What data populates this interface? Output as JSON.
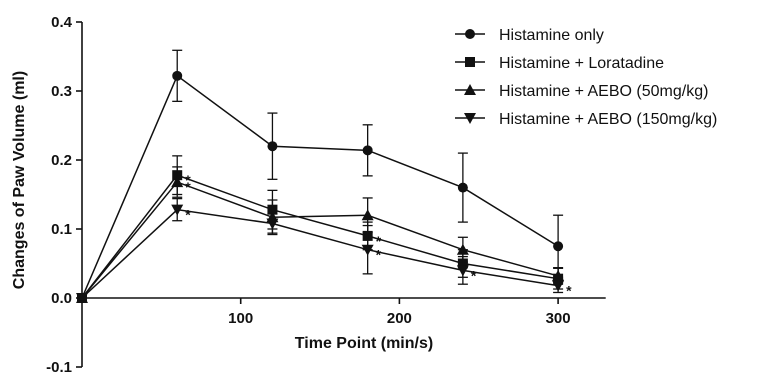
{
  "chart_data": {
    "type": "line",
    "title": "",
    "xlabel": "Time Point (min/s)",
    "ylabel": "Changes of Paw Volume (ml)",
    "xlim": [
      0,
      330
    ],
    "ylim": [
      -0.1,
      0.4
    ],
    "x_ticks": [
      100,
      200,
      300
    ],
    "x_tick_labels": [
      "100",
      "200",
      "300"
    ],
    "y_ticks": [
      -0.1,
      0.0,
      0.1,
      0.2,
      0.3,
      0.4
    ],
    "y_tick_labels": [
      "-0.1",
      "0.0",
      "0.1",
      "0.2",
      "0.3",
      "0.4"
    ],
    "x": [
      0,
      60,
      120,
      180,
      240,
      300
    ],
    "legend_position": "top-right",
    "grid": false,
    "line_color": "#111111",
    "series": [
      {
        "name": "Histamine only",
        "marker": "circle",
        "values": [
          0.0,
          0.322,
          0.22,
          0.214,
          0.16,
          0.075
        ],
        "errors": [
          0.0,
          0.037,
          0.048,
          0.037,
          0.05,
          0.045
        ],
        "significant": [
          false,
          false,
          false,
          false,
          false,
          false
        ]
      },
      {
        "name": "Histamine + Loratadine",
        "marker": "square",
        "values": [
          0.0,
          0.178,
          0.128,
          0.09,
          0.05,
          0.028
        ],
        "errors": [
          0.0,
          0.028,
          0.028,
          0.02,
          0.02,
          0.015
        ],
        "significant": [
          false,
          true,
          false,
          true,
          false,
          false
        ]
      },
      {
        "name": "Histamine + AEBO (50mg/kg)",
        "marker": "triangle-up",
        "values": [
          0.0,
          0.168,
          0.117,
          0.12,
          0.07,
          0.032
        ],
        "errors": [
          0.0,
          0.022,
          0.025,
          0.025,
          0.018,
          0.012
        ],
        "significant": [
          false,
          true,
          false,
          false,
          false,
          false
        ]
      },
      {
        "name": "Histamine + AEBO (150mg/kg)",
        "marker": "triangle-down",
        "values": [
          0.0,
          0.128,
          0.108,
          0.07,
          0.04,
          0.018
        ],
        "errors": [
          0.0,
          0.016,
          0.014,
          0.035,
          0.02,
          0.01
        ],
        "significant": [
          false,
          true,
          false,
          true,
          true,
          true
        ]
      }
    ],
    "annotation_symbol": "*"
  }
}
